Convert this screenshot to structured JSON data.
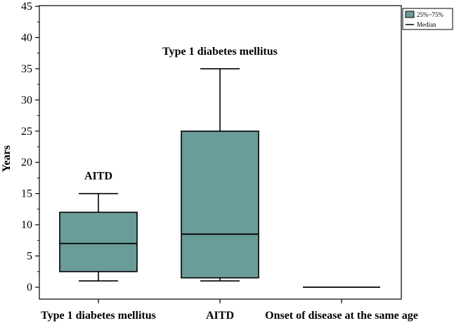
{
  "chart_data": {
    "type": "box",
    "ylabel": "Years",
    "ylim": [
      0,
      45
    ],
    "yticks": [
      0,
      5,
      10,
      15,
      20,
      25,
      30,
      35,
      40,
      45
    ],
    "categories": [
      "Type 1 diabetes mellitus",
      "AITD",
      "Onset of disease at the same age"
    ],
    "boxes": [
      {
        "category": "Type 1 diabetes mellitus",
        "min": 1,
        "q1": 2.5,
        "median": 7,
        "q3": 12,
        "max": 15,
        "annotation": "AITD"
      },
      {
        "category": "AITD",
        "min": 1,
        "q1": 1.5,
        "median": 8.5,
        "q3": 25,
        "max": 35,
        "annotation": "Type 1 diabetes mellitus"
      },
      {
        "category": "Onset of disease at the same age",
        "min": 0,
        "q1": 0,
        "median": 0,
        "q3": 0,
        "max": 0,
        "annotation": ""
      }
    ],
    "legend": {
      "position": "top-right",
      "items": [
        "25%~75%",
        "Median"
      ]
    },
    "colors": {
      "box_fill": "#6a9c99",
      "stroke": "#000000"
    },
    "grid": false
  }
}
